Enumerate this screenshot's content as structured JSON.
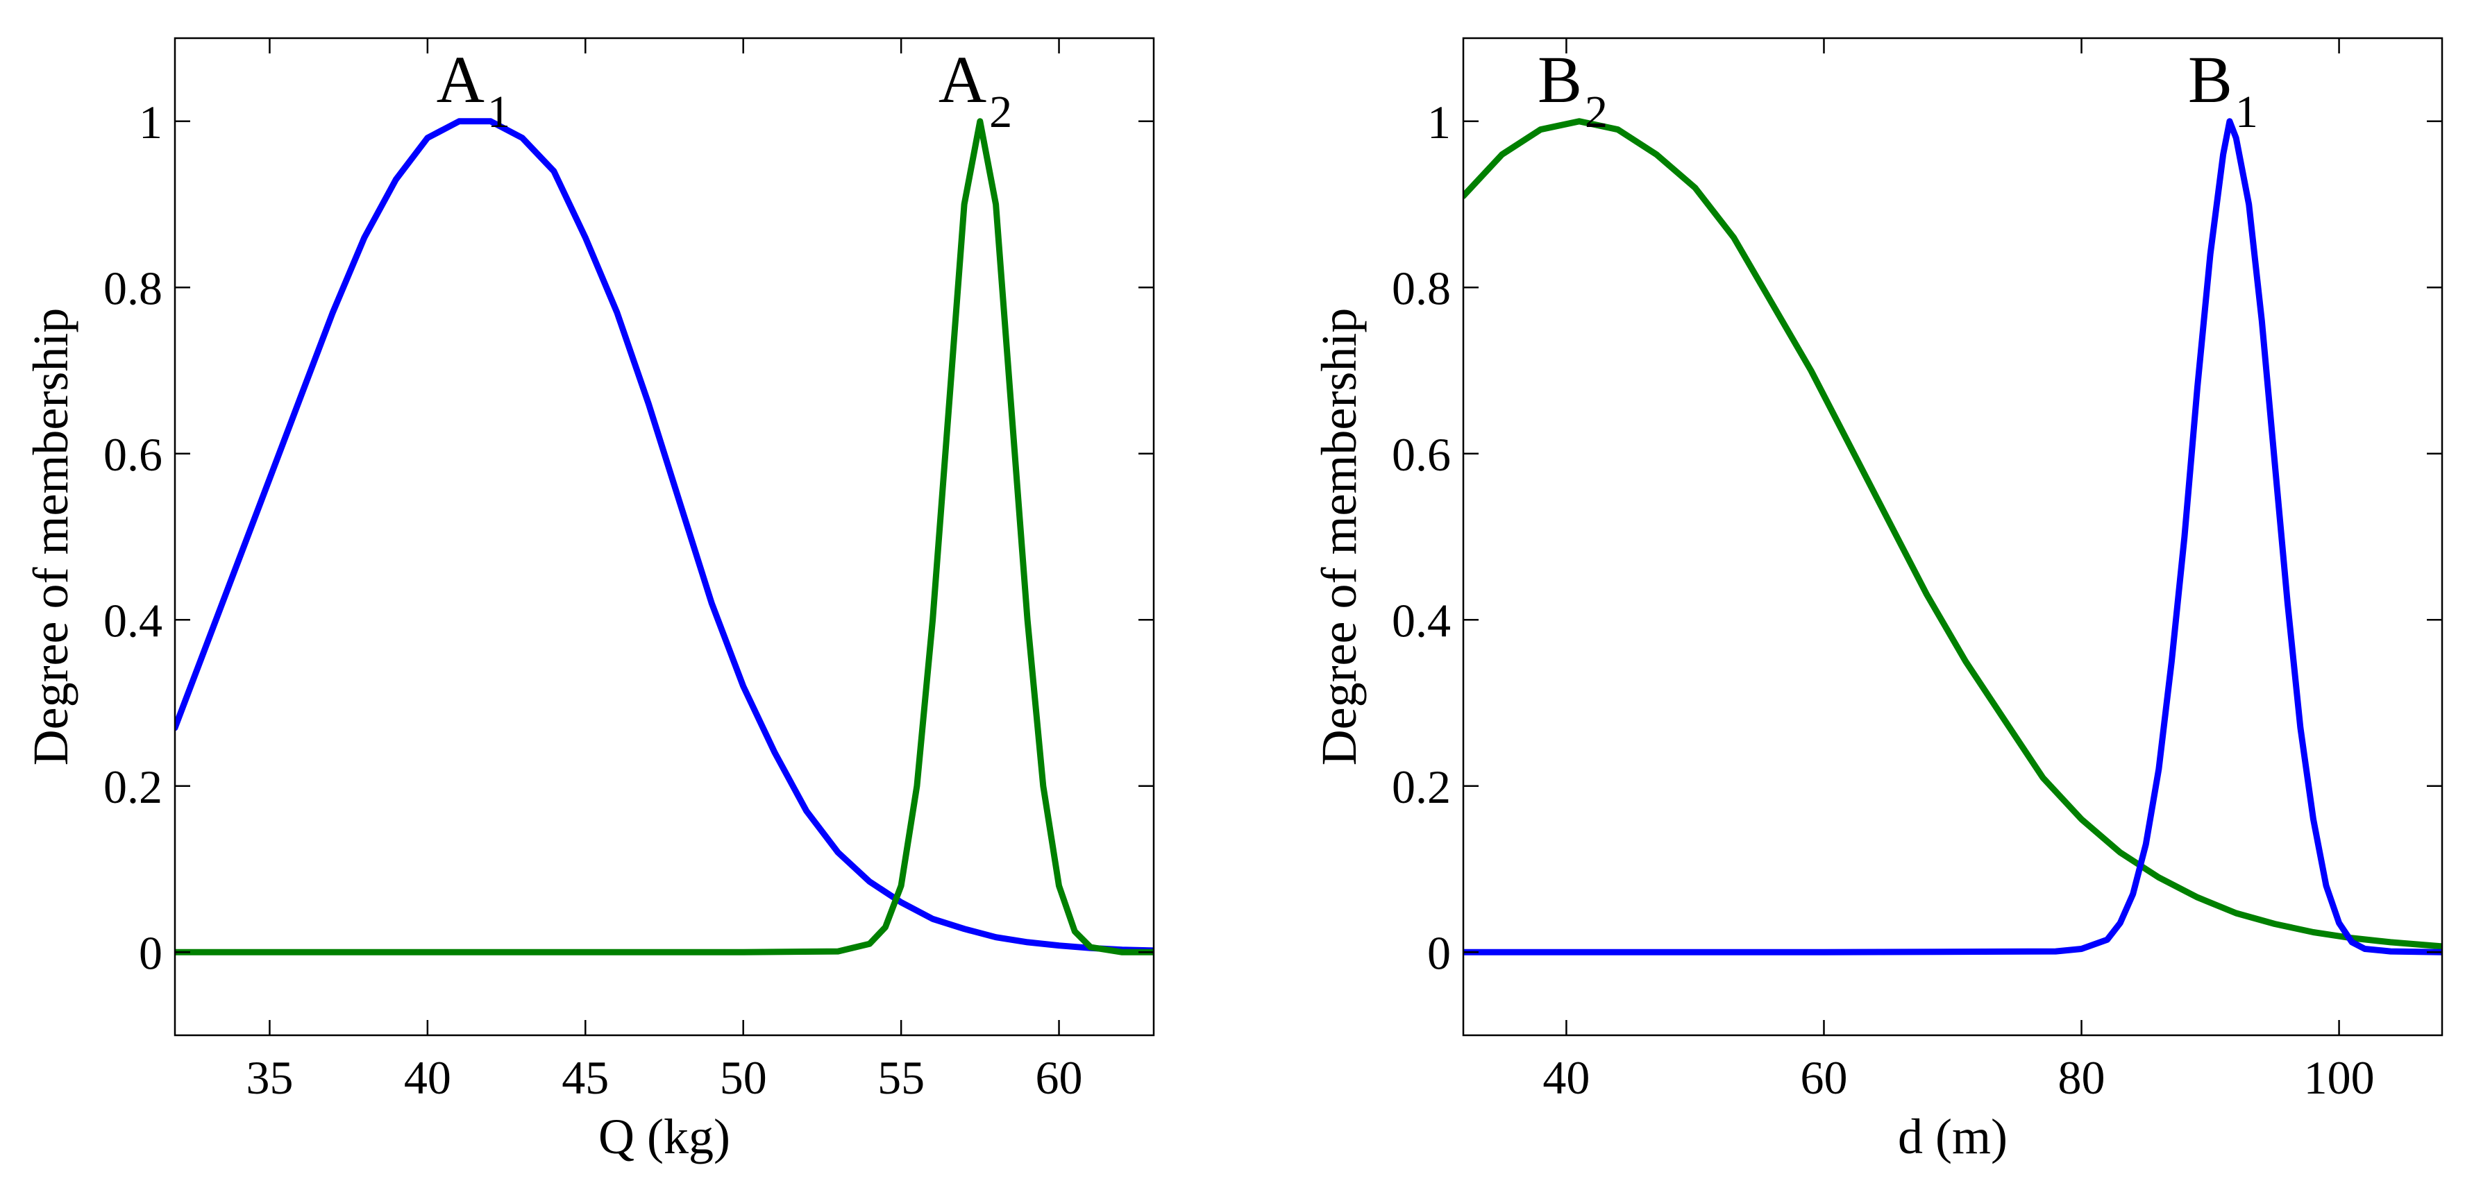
{
  "chart_data": [
    {
      "type": "line",
      "title": "",
      "xlabel": "Q (kg)",
      "ylabel": "Degree of membership",
      "xlim": [
        32,
        63
      ],
      "ylim": [
        -0.1,
        1.1
      ],
      "xticks": [
        35,
        40,
        45,
        50,
        55,
        60
      ],
      "yticks": [
        0,
        0.2,
        0.4,
        0.6,
        0.8,
        1
      ],
      "ytick_labels": [
        "0",
        "0.2",
        "0.4",
        "0.6",
        "0.8",
        "1"
      ],
      "grid": false,
      "series": [
        {
          "name": "A1",
          "label_main": "A",
          "label_sub": "1",
          "color": "#0000ff",
          "label_at": [
            41.6,
            1
          ],
          "x": [
            32,
            33,
            34,
            35,
            36,
            37,
            38,
            39,
            40,
            41,
            41.6,
            42,
            43,
            44,
            45,
            46,
            47,
            48,
            49,
            50,
            51,
            52,
            53,
            54,
            55,
            56,
            57,
            58,
            59,
            60,
            61,
            62,
            63
          ],
          "y": [
            0.27,
            0.37,
            0.47,
            0.57,
            0.67,
            0.77,
            0.86,
            0.93,
            0.98,
            1.0,
            1.0,
            1.0,
            0.98,
            0.94,
            0.86,
            0.77,
            0.66,
            0.54,
            0.42,
            0.32,
            0.24,
            0.17,
            0.12,
            0.085,
            0.06,
            0.04,
            0.028,
            0.018,
            0.012,
            0.008,
            0.005,
            0.003,
            0.002
          ]
        },
        {
          "name": "A2",
          "label_main": "A",
          "label_sub": "2",
          "color": "#008000",
          "label_at": [
            57.5,
            1
          ],
          "x": [
            32,
            40,
            50,
            53,
            54,
            54.5,
            55,
            55.5,
            56,
            56.5,
            57,
            57.5,
            58,
            58.5,
            59,
            59.5,
            60,
            60.5,
            61,
            62,
            63
          ],
          "y": [
            0,
            0,
            0,
            0.001,
            0.01,
            0.03,
            0.08,
            0.2,
            0.4,
            0.65,
            0.9,
            1.0,
            0.9,
            0.65,
            0.4,
            0.2,
            0.08,
            0.025,
            0.006,
            0,
            0
          ]
        }
      ]
    },
    {
      "type": "line",
      "title": "",
      "xlabel": "d (m)",
      "ylabel": "Degree of membership",
      "xlim": [
        32,
        108
      ],
      "ylim": [
        -0.1,
        1.1
      ],
      "xticks": [
        40,
        60,
        80,
        100
      ],
      "yticks": [
        0,
        0.2,
        0.4,
        0.6,
        0.8,
        1
      ],
      "ytick_labels": [
        "0",
        "0.2",
        "0.4",
        "0.6",
        "0.8",
        "1"
      ],
      "grid": false,
      "series": [
        {
          "name": "B2",
          "label_main": "B",
          "label_sub": "2",
          "color": "#008000",
          "label_at": [
            41,
            1
          ],
          "x": [
            32,
            35,
            38,
            41,
            44,
            47,
            50,
            53,
            56,
            59,
            62,
            65,
            68,
            71,
            74,
            77,
            80,
            83,
            86,
            89,
            92,
            95,
            98,
            101,
            104,
            108
          ],
          "y": [
            0.91,
            0.96,
            0.99,
            1.0,
            0.99,
            0.96,
            0.92,
            0.86,
            0.78,
            0.7,
            0.61,
            0.52,
            0.43,
            0.35,
            0.28,
            0.21,
            0.16,
            0.12,
            0.09,
            0.066,
            0.047,
            0.034,
            0.024,
            0.017,
            0.012,
            0.007
          ]
        },
        {
          "name": "B1",
          "label_main": "B",
          "label_sub": "1",
          "color": "#0000ff",
          "label_at": [
            91.5,
            1
          ],
          "x": [
            32,
            60,
            78,
            80,
            82,
            83,
            84,
            85,
            86,
            87,
            88,
            89,
            90,
            91,
            91.5,
            92,
            93,
            94,
            95,
            96,
            97,
            98,
            99,
            100,
            101,
            102,
            104,
            108
          ],
          "y": [
            0,
            0,
            0.001,
            0.004,
            0.015,
            0.035,
            0.07,
            0.13,
            0.22,
            0.35,
            0.5,
            0.68,
            0.84,
            0.96,
            1.0,
            0.98,
            0.9,
            0.76,
            0.59,
            0.42,
            0.27,
            0.16,
            0.08,
            0.035,
            0.012,
            0.004,
            0.001,
            0
          ]
        }
      ]
    }
  ]
}
